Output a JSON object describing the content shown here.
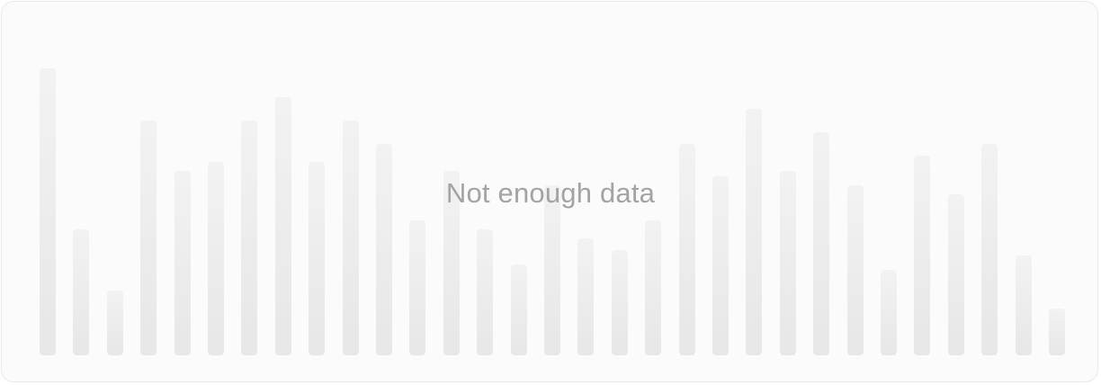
{
  "empty_state": {
    "message": "Not enough data"
  },
  "placeholder_bars": {
    "levels": [
      0.98,
      0.43,
      0.22,
      0.8,
      0.63,
      0.66,
      0.8,
      0.88,
      0.66,
      0.8,
      0.72,
      0.46,
      0.63,
      0.43,
      0.31,
      0.58,
      0.4,
      0.36,
      0.46,
      0.72,
      0.61,
      0.84,
      0.63,
      0.76,
      0.58,
      0.29,
      0.68,
      0.55,
      0.72,
      0.34,
      0.16
    ],
    "colors": {
      "top": "#f2f2f2",
      "bottom": "#e7e7e7",
      "card_background": "#fbfbfb",
      "card_border": "#e9e9e9",
      "message": "#a3a3a3"
    }
  }
}
